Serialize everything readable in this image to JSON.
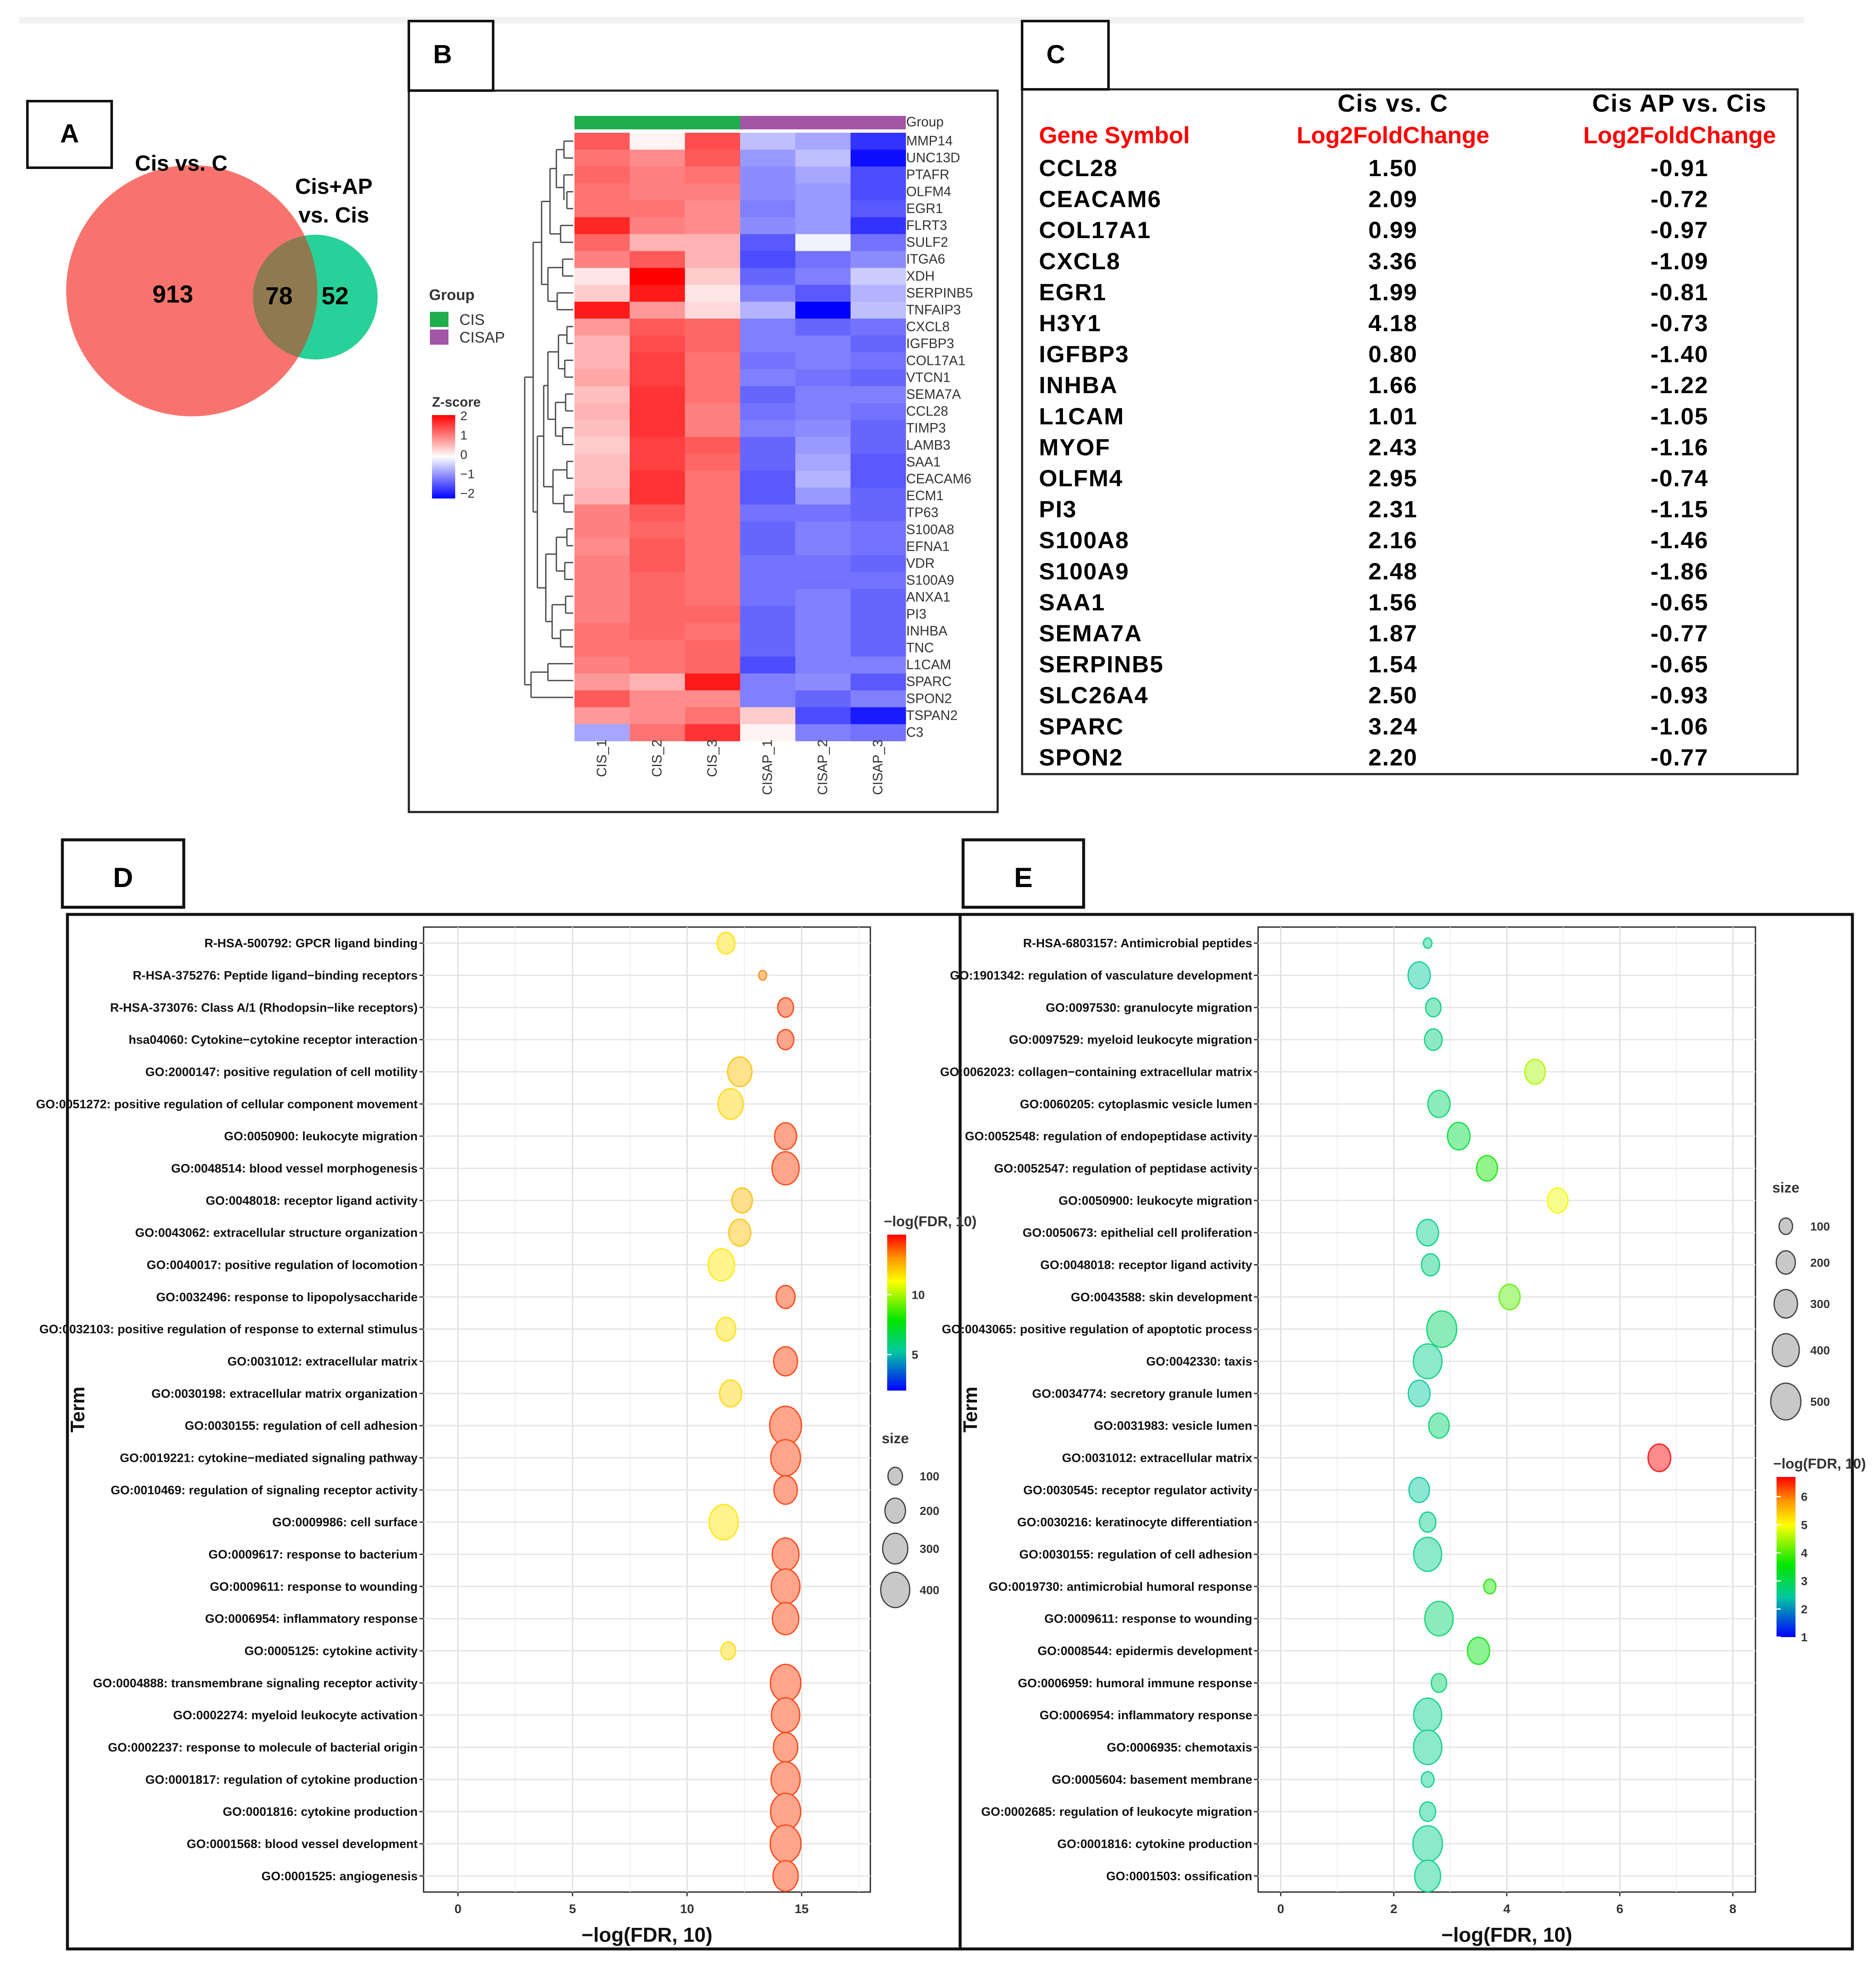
{
  "panel_labels": {
    "a": "A",
    "b": "B",
    "c": "C",
    "d": "D",
    "e": "E"
  },
  "colors": {
    "venn_left": "#f8736d",
    "venn_right": "#27d199",
    "venn_overlap": "#8f7a50",
    "group_cis": "#1fae4b",
    "group_cisap": "#a355a6",
    "heat_high": "#ff0000",
    "heat_mid": "#ffffff",
    "heat_low": "#0000ff",
    "table_header_red": "#ff0000"
  },
  "chart_data": [
    {
      "type": "venn",
      "sets": [
        "Cis vs. C",
        "Cis+AP vs. Cis"
      ],
      "set_label_lines": [
        [
          "Cis vs. C"
        ],
        [
          "Cis+AP",
          "vs. Cis"
        ]
      ],
      "left_only": "913",
      "overlap": "78",
      "right_only": "52"
    },
    {
      "type": "heatmap",
      "annotation_title": "Group",
      "legend_group_title": "Group",
      "groups": [
        {
          "name": "CIS",
          "color": "#1fae4b"
        },
        {
          "name": "CISAP",
          "color": "#a355a6"
        }
      ],
      "legend_scale_title": "Z-score",
      "scale_ticks": [
        "2",
        "1",
        "0",
        "−1",
        "−2"
      ],
      "columns": [
        "CIS_1",
        "CIS_2",
        "CIS_3",
        "CISAP_1",
        "CISAP_2",
        "CISAP_3"
      ],
      "rows": [
        "MMP14",
        "UNC13D",
        "PTAFR",
        "OLFM4",
        "EGR1",
        "FLRT3",
        "SULF2",
        "ITGA6",
        "XDH",
        "SERPINB5",
        "TNFAIP3",
        "CXCL8",
        "IGFBP3",
        "COL17A1",
        "VTCN1",
        "SEMA7A",
        "CCL28",
        "TIMP3",
        "LAMB3",
        "SAA1",
        "CEACAM6",
        "ECM1",
        "TP63",
        "S100A8",
        "EFNA1",
        "VDR",
        "S100A9",
        "ANXA1",
        "PI3",
        "INHBA",
        "TNC",
        "L1CAM",
        "SPARC",
        "SPON2",
        "TSPAN2",
        "C3"
      ],
      "values": [
        [
          1.3,
          0.1,
          1.4,
          -0.5,
          -0.7,
          -1.6
        ],
        [
          1.1,
          0.9,
          1.3,
          -0.8,
          -0.5,
          -1.9
        ],
        [
          1.2,
          1.0,
          1.1,
          -0.9,
          -0.7,
          -1.4
        ],
        [
          1.1,
          1.0,
          1.0,
          -0.9,
          -0.8,
          -1.4
        ],
        [
          1.1,
          1.1,
          0.9,
          -1.0,
          -0.8,
          -1.3
        ],
        [
          1.7,
          1.0,
          0.9,
          -0.9,
          -0.8,
          -1.6
        ],
        [
          1.2,
          0.6,
          0.6,
          -1.3,
          -0.1,
          -1.1
        ],
        [
          1.0,
          1.3,
          0.6,
          -1.4,
          -1.1,
          -0.9
        ],
        [
          0.2,
          2.0,
          0.4,
          -1.2,
          -1.0,
          -0.4
        ],
        [
          0.4,
          1.8,
          0.2,
          -1.0,
          -1.3,
          -0.6
        ],
        [
          1.8,
          0.8,
          0.3,
          -0.6,
          -2.0,
          -0.5
        ],
        [
          0.8,
          1.3,
          1.2,
          -1.0,
          -1.2,
          -1.1
        ],
        [
          0.6,
          1.4,
          1.2,
          -1.0,
          -1.0,
          -1.2
        ],
        [
          0.6,
          1.5,
          1.1,
          -1.1,
          -1.0,
          -1.1
        ],
        [
          0.7,
          1.5,
          1.1,
          -1.0,
          -1.1,
          -1.2
        ],
        [
          0.5,
          1.6,
          1.1,
          -1.2,
          -1.0,
          -1.0
        ],
        [
          0.6,
          1.6,
          1.0,
          -1.1,
          -1.0,
          -1.1
        ],
        [
          0.5,
          1.6,
          1.0,
          -1.0,
          -0.9,
          -1.2
        ],
        [
          0.4,
          1.5,
          1.3,
          -1.2,
          -0.8,
          -1.2
        ],
        [
          0.5,
          1.5,
          1.2,
          -1.2,
          -0.7,
          -1.3
        ],
        [
          0.5,
          1.6,
          1.1,
          -1.3,
          -0.6,
          -1.3
        ],
        [
          0.6,
          1.6,
          1.1,
          -1.3,
          -0.8,
          -1.2
        ],
        [
          1.0,
          1.3,
          1.1,
          -1.1,
          -1.1,
          -1.2
        ],
        [
          1.0,
          1.2,
          1.1,
          -1.2,
          -1.0,
          -1.1
        ],
        [
          0.9,
          1.3,
          1.1,
          -1.2,
          -1.0,
          -1.1
        ],
        [
          1.0,
          1.3,
          1.1,
          -1.1,
          -1.1,
          -1.2
        ],
        [
          1.0,
          1.2,
          1.1,
          -1.1,
          -1.1,
          -1.1
        ],
        [
          1.0,
          1.2,
          1.1,
          -1.1,
          -1.0,
          -1.2
        ],
        [
          1.0,
          1.2,
          1.2,
          -1.2,
          -1.0,
          -1.2
        ],
        [
          1.1,
          1.2,
          1.1,
          -1.2,
          -1.0,
          -1.2
        ],
        [
          1.1,
          1.1,
          1.2,
          -1.2,
          -1.0,
          -1.2
        ],
        [
          1.0,
          1.1,
          1.2,
          -1.4,
          -1.0,
          -1.0
        ],
        [
          0.8,
          0.6,
          1.8,
          -1.0,
          -0.9,
          -1.3
        ],
        [
          1.3,
          0.9,
          0.9,
          -1.0,
          -1.2,
          -1.0
        ],
        [
          0.8,
          0.9,
          1.1,
          0.4,
          -1.4,
          -1.8
        ],
        [
          -0.7,
          1.1,
          1.6,
          0.1,
          -1.0,
          -1.1
        ]
      ]
    },
    {
      "type": "table",
      "col_group_headers": [
        "",
        "Cis vs. C",
        "Cis AP vs. Cis"
      ],
      "headers": [
        "Gene Symbol",
        "Log2FoldChange",
        "Log2FoldChange"
      ],
      "rows": [
        [
          "CCL28",
          "1.50",
          "-0.91"
        ],
        [
          "CEACAM6",
          "2.09",
          "-0.72"
        ],
        [
          "COL17A1",
          "0.99",
          "-0.97"
        ],
        [
          "CXCL8",
          "3.36",
          "-1.09"
        ],
        [
          "EGR1",
          "1.99",
          "-0.81"
        ],
        [
          "H3Y1",
          "4.18",
          "-0.73"
        ],
        [
          "IGFBP3",
          "0.80",
          "-1.40"
        ],
        [
          "INHBA",
          "1.66",
          "-1.22"
        ],
        [
          "L1CAM",
          "1.01",
          "-1.05"
        ],
        [
          "MYOF",
          "2.43",
          "-1.16"
        ],
        [
          "OLFM4",
          "2.95",
          "-0.74"
        ],
        [
          "PI3",
          "2.31",
          "-1.15"
        ],
        [
          "S100A8",
          "2.16",
          "-1.46"
        ],
        [
          "S100A9",
          "2.48",
          "-1.86"
        ],
        [
          "SAA1",
          "1.56",
          "-0.65"
        ],
        [
          "SEMA7A",
          "1.87",
          "-0.77"
        ],
        [
          "SERPINB5",
          "1.54",
          "-0.65"
        ],
        [
          "SLC26A4",
          "2.50",
          "-0.93"
        ],
        [
          "SPARC",
          "3.24",
          "-1.06"
        ],
        [
          "SPON2",
          "2.20",
          "-0.77"
        ]
      ]
    },
    {
      "type": "scatter",
      "xlabel": "−log(FDR, 10)",
      "ylabel": "Term",
      "xlim": [
        -1.5,
        18
      ],
      "xticks": [
        0,
        5,
        10,
        15
      ],
      "color_legend_title": "−log(FDR, 10)",
      "color_ticks": [
        5,
        10
      ],
      "color_range": [
        2,
        15
      ],
      "size_legend_title": "size",
      "size_ticks": [
        100,
        200,
        300,
        400
      ],
      "terms": [
        "R-HSA-500792: GPCR ligand binding",
        "R-HSA-375276: Peptide ligand−binding receptors",
        "R-HSA-373076: Class A/1 (Rhodopsin−like receptors)",
        "hsa04060: Cytokine−cytokine receptor interaction",
        "GO:2000147: positive regulation of cell motility",
        "GO:0051272: positive regulation of cellular component movement",
        "GO:0050900: leukocyte migration",
        "GO:0048514: blood vessel morphogenesis",
        "GO:0048018: receptor ligand activity",
        "GO:0043062: extracellular structure organization",
        "GO:0040017: positive regulation of locomotion",
        "GO:0032496: response to lipopolysaccharide",
        "GO:0032103: positive regulation of response to external stimulus",
        "GO:0031012: extracellular matrix",
        "GO:0030198: extracellular matrix organization",
        "GO:0030155: regulation of cell adhesion",
        "GO:0019221: cytokine−mediated signaling pathway",
        "GO:0010469: regulation of signaling receptor activity",
        "GO:0009986: cell surface",
        "GO:0009617: response to bacterium",
        "GO:0009611: response to wounding",
        "GO:0006954: inflammatory response",
        "GO:0005125: cytokine activity",
        "GO:0004888: transmembrane signaling receptor activity",
        "GO:0002274: myeloid leukocyte activation",
        "GO:0002237: response to molecule of bacterial origin",
        "GO:0001817: regulation of cytokine production",
        "GO:0001816: cytokine production",
        "GO:0001568: blood vessel development",
        "GO:0001525: angiogenesis"
      ],
      "x": [
        11.7,
        13.3,
        14.3,
        14.3,
        12.3,
        11.9,
        14.3,
        14.3,
        12.4,
        12.3,
        11.5,
        14.3,
        11.7,
        14.3,
        11.9,
        14.3,
        14.3,
        14.3,
        11.6,
        14.3,
        14.3,
        14.3,
        11.8,
        14.3,
        14.3,
        14.3,
        14.3,
        14.3,
        14.3,
        14.3
      ],
      "size": [
        150,
        30,
        120,
        130,
        280,
        300,
        230,
        350,
        200,
        230,
        330,
        170,
        180,
        270,
        230,
        480,
        420,
        260,
        400,
        340,
        390,
        330,
        100,
        440,
        380,
        280,
        400,
        430,
        450,
        300
      ]
    },
    {
      "type": "scatter",
      "xlabel": "−log(FDR, 10)",
      "ylabel": "Term",
      "xlim": [
        -0.4,
        8.4
      ],
      "xticks": [
        0,
        2,
        4,
        6,
        8
      ],
      "color_legend_title": "−log(FDR, 10)",
      "color_ticks": [
        1,
        2,
        3,
        4,
        5,
        6
      ],
      "color_range": [
        1,
        6.7
      ],
      "size_legend_title": "size",
      "size_ticks": [
        100,
        200,
        300,
        400,
        500
      ],
      "terms": [
        "R-HSA-6803157: Antimicrobial peptides",
        "GO:1901342: regulation of vasculature development",
        "GO:0097530: granulocyte migration",
        "GO:0097529: myeloid leukocyte migration",
        "GO:0062023: collagen−containing extracellular matrix",
        "GO:0060205: cytoplasmic vesicle lumen",
        "GO:0052548: regulation of endopeptidase activity",
        "GO:0052547: regulation of peptidase activity",
        "GO:0050900: leukocyte migration",
        "GO:0050673: epithelial cell proliferation",
        "GO:0048018: receptor ligand activity",
        "GO:0043588: skin development",
        "GO:0043065: positive regulation of apoptotic process",
        "GO:0042330: taxis",
        "GO:0034774: secretory granule lumen",
        "GO:0031983: vesicle lumen",
        "GO:0031012: extracellular matrix",
        "GO:0030545: receptor regulator activity",
        "GO:0030216: keratinocyte differentiation",
        "GO:0030155: regulation of cell adhesion",
        "GO:0019730: antimicrobial humoral response",
        "GO:0009611: response to wounding",
        "GO:0008544: epidermis development",
        "GO:0006959: humoral immune response",
        "GO:0006954: inflammatory response",
        "GO:0006935: chemotaxis",
        "GO:0005604: basement membrane",
        "GO:0002685: regulation of leukocyte migration",
        "GO:0001816: cytokine production",
        "GO:0001503: ossification"
      ],
      "x": [
        2.6,
        2.45,
        2.7,
        2.7,
        4.5,
        2.8,
        3.15,
        3.65,
        4.9,
        2.6,
        2.65,
        4.05,
        2.85,
        2.6,
        2.45,
        2.8,
        6.7,
        2.45,
        2.6,
        2.6,
        3.7,
        2.8,
        3.5,
        2.8,
        2.6,
        2.6,
        2.6,
        2.6,
        2.6,
        2.6
      ],
      "size": [
        40,
        270,
        130,
        170,
        230,
        270,
        280,
        240,
        230,
        260,
        180,
        240,
        490,
        450,
        260,
        230,
        280,
        230,
        150,
        430,
        80,
        440,
        270,
        130,
        430,
        440,
        90,
        140,
        480,
        370
      ]
    }
  ]
}
